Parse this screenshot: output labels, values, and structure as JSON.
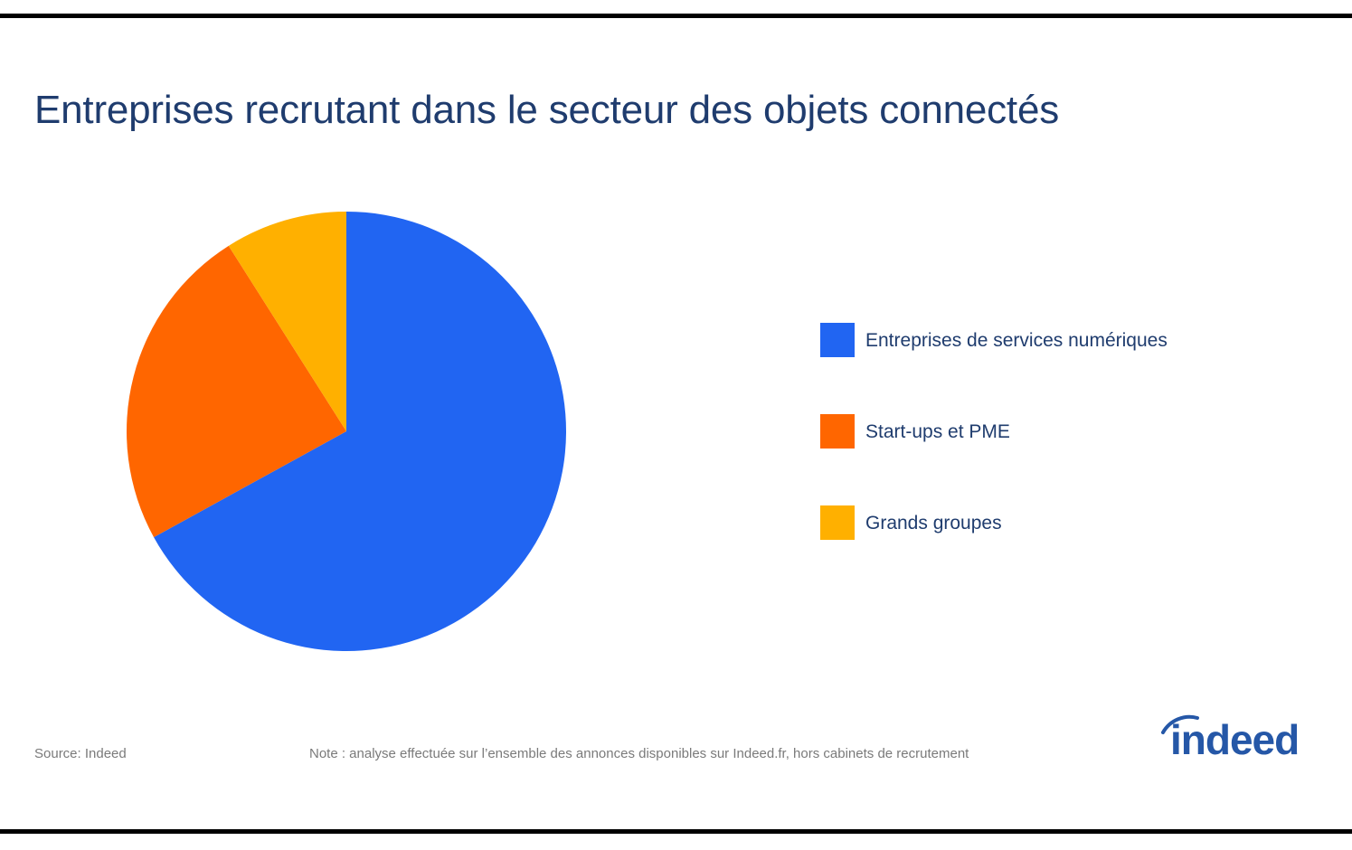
{
  "title": "Entreprises recrutant dans le secteur des objets connectés",
  "chart_data": {
    "type": "pie",
    "title": "Entreprises recrutant dans le secteur des objets connectés",
    "categories": [
      "Entreprises de services numériques",
      "Start-ups et PME",
      "Grands groupes"
    ],
    "values": [
      67,
      24,
      9
    ],
    "unit": "%",
    "colors": [
      "#2165f2",
      "#ff6600",
      "#ffb000"
    ],
    "legend_placement": "right",
    "start": "top",
    "direction": "clockwise"
  },
  "footer": {
    "source": "Source: Indeed",
    "note": "Note : analyse effectuée sur l’ensemble des annonces disponibles sur Indeed.fr, hors cabinets de recrutement"
  },
  "logo": {
    "text": "indeed",
    "color": "#2557a7"
  }
}
